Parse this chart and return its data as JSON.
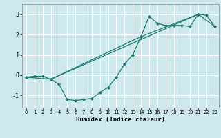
{
  "title": "",
  "xlabel": "Humidex (Indice chaleur)",
  "ylabel": "",
  "background_color": "#cce8ec",
  "grid_color": "#ffffff",
  "line_color": "#1a7a6e",
  "xlim": [
    -0.5,
    23.5
  ],
  "ylim": [
    -1.6,
    3.5
  ],
  "xticks": [
    0,
    1,
    2,
    3,
    4,
    5,
    6,
    7,
    8,
    9,
    10,
    11,
    12,
    13,
    14,
    15,
    16,
    17,
    18,
    19,
    20,
    21,
    22,
    23
  ],
  "yticks": [
    -1,
    0,
    1,
    2,
    3
  ],
  "series": [
    {
      "x": [
        0,
        1,
        2,
        3,
        4,
        5,
        6,
        7,
        8,
        9,
        10,
        11,
        12,
        13,
        14,
        15,
        16,
        17,
        18,
        19,
        20,
        21,
        22,
        23
      ],
      "y": [
        -0.1,
        -0.05,
        -0.05,
        -0.2,
        -0.45,
        -1.2,
        -1.25,
        -1.2,
        -1.15,
        -0.85,
        -0.6,
        -0.1,
        0.55,
        1.0,
        1.9,
        2.9,
        2.55,
        2.45,
        2.45,
        2.45,
        2.4,
        3.0,
        2.95,
        2.4
      ]
    },
    {
      "x": [
        0,
        3,
        21,
        23
      ],
      "y": [
        -0.1,
        -0.2,
        3.0,
        2.4
      ]
    },
    {
      "x": [
        3,
        14,
        21
      ],
      "y": [
        -0.2,
        1.9,
        3.0
      ]
    }
  ]
}
